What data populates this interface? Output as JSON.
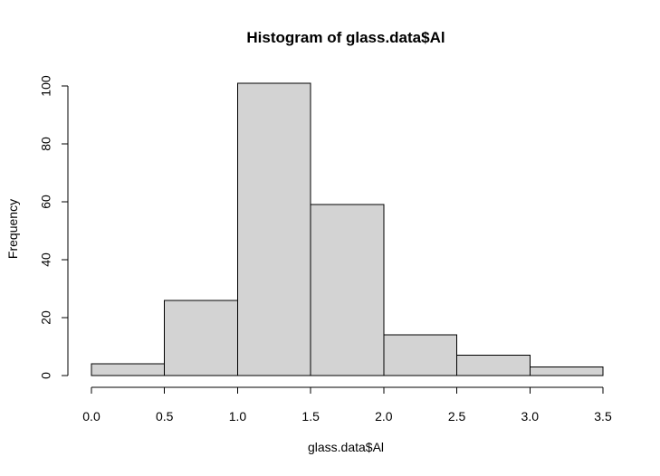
{
  "chart_data": {
    "type": "bar",
    "title": "Histogram of glass.data$Al",
    "xlabel": "glass.data$Al",
    "ylabel": "Frequency",
    "bins": [
      {
        "start": 0.0,
        "end": 0.5,
        "count": 4
      },
      {
        "start": 0.5,
        "end": 1.0,
        "count": 26
      },
      {
        "start": 1.0,
        "end": 1.5,
        "count": 101
      },
      {
        "start": 1.5,
        "end": 2.0,
        "count": 59
      },
      {
        "start": 2.0,
        "end": 2.5,
        "count": 14
      },
      {
        "start": 2.5,
        "end": 3.0,
        "count": 7
      },
      {
        "start": 3.0,
        "end": 3.5,
        "count": 3
      }
    ],
    "x_ticks": [
      "0.0",
      "0.5",
      "1.0",
      "1.5",
      "2.0",
      "2.5",
      "3.0",
      "3.5"
    ],
    "y_ticks": [
      "0",
      "20",
      "40",
      "60",
      "80",
      "100"
    ],
    "xlim": [
      0.0,
      3.5
    ],
    "ylim": [
      0,
      100
    ],
    "grid": false,
    "bar_fill": "#d3d3d3",
    "bar_stroke": "#000000"
  }
}
